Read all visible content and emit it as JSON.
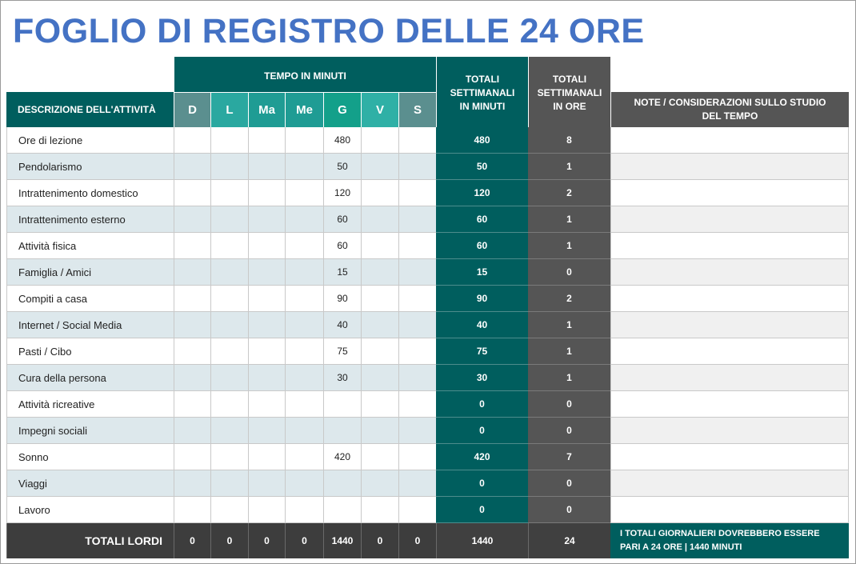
{
  "title": "FOGLIO DI REGISTRO DELLE 24 ORE",
  "header": {
    "description": "DESCRIZIONE DELL'ATTIVITÀ",
    "tempo": "TEMPO IN MINUTI",
    "days": [
      "D",
      "L",
      "Ma",
      "Me",
      "G",
      "V",
      "S"
    ],
    "weekly_minutes": "TOTALI SETTIMANALI IN MINUTI",
    "weekly_hours": "TOTALI SETTIMANALI IN ORE",
    "notes": "NOTE / CONSIDERAZIONI SULLO STUDIO DEL TEMPO"
  },
  "colors": {
    "title": "#4472c4",
    "teal_dark": "#005e5e",
    "gray_dark": "#555555",
    "days": [
      "#5b8f8f",
      "#2aa8a0",
      "#1f9c94",
      "#1f9c94",
      "#13a08a",
      "#2fb0a6",
      "#5b8f8f"
    ]
  },
  "rows": [
    {
      "activity": "Ore di lezione",
      "days": [
        "",
        "",
        "",
        "",
        "480",
        "",
        ""
      ],
      "minutes": "480",
      "hours": "8"
    },
    {
      "activity": "Pendolarismo",
      "days": [
        "",
        "",
        "",
        "",
        "50",
        "",
        ""
      ],
      "minutes": "50",
      "hours": "1"
    },
    {
      "activity": "Intrattenimento domestico",
      "days": [
        "",
        "",
        "",
        "",
        "120",
        "",
        ""
      ],
      "minutes": "120",
      "hours": "2"
    },
    {
      "activity": "Intrattenimento esterno",
      "days": [
        "",
        "",
        "",
        "",
        "60",
        "",
        ""
      ],
      "minutes": "60",
      "hours": "1"
    },
    {
      "activity": "Attività fisica",
      "days": [
        "",
        "",
        "",
        "",
        "60",
        "",
        ""
      ],
      "minutes": "60",
      "hours": "1"
    },
    {
      "activity": "Famiglia / Amici",
      "days": [
        "",
        "",
        "",
        "",
        "15",
        "",
        ""
      ],
      "minutes": "15",
      "hours": "0"
    },
    {
      "activity": "Compiti a casa",
      "days": [
        "",
        "",
        "",
        "",
        "90",
        "",
        ""
      ],
      "minutes": "90",
      "hours": "2"
    },
    {
      "activity": "Internet / Social Media",
      "days": [
        "",
        "",
        "",
        "",
        "40",
        "",
        ""
      ],
      "minutes": "40",
      "hours": "1"
    },
    {
      "activity": "Pasti / Cibo",
      "days": [
        "",
        "",
        "",
        "",
        "75",
        "",
        ""
      ],
      "minutes": "75",
      "hours": "1"
    },
    {
      "activity": "Cura della persona",
      "days": [
        "",
        "",
        "",
        "",
        "30",
        "",
        ""
      ],
      "minutes": "30",
      "hours": "1"
    },
    {
      "activity": "Attività ricreative",
      "days": [
        "",
        "",
        "",
        "",
        "",
        "",
        ""
      ],
      "minutes": "0",
      "hours": "0"
    },
    {
      "activity": "Impegni sociali",
      "days": [
        "",
        "",
        "",
        "",
        "",
        "",
        ""
      ],
      "minutes": "0",
      "hours": "0"
    },
    {
      "activity": "Sonno",
      "days": [
        "",
        "",
        "",
        "",
        "420",
        "",
        ""
      ],
      "minutes": "420",
      "hours": "7"
    },
    {
      "activity": "Viaggi",
      "days": [
        "",
        "",
        "",
        "",
        "",
        "",
        ""
      ],
      "minutes": "0",
      "hours": "0"
    },
    {
      "activity": "Lavoro",
      "days": [
        "",
        "",
        "",
        "",
        "",
        "",
        ""
      ],
      "minutes": "0",
      "hours": "0"
    }
  ],
  "totals": {
    "label": "TOTALI LORDI",
    "days": [
      "0",
      "0",
      "0",
      "0",
      "1440",
      "0",
      "0"
    ],
    "minutes": "1440",
    "hours": "24",
    "note": "I TOTALI GIORNALIERI DOVREBBERO ESSERE PARI A 24 ORE | 1440 MINUTI"
  }
}
